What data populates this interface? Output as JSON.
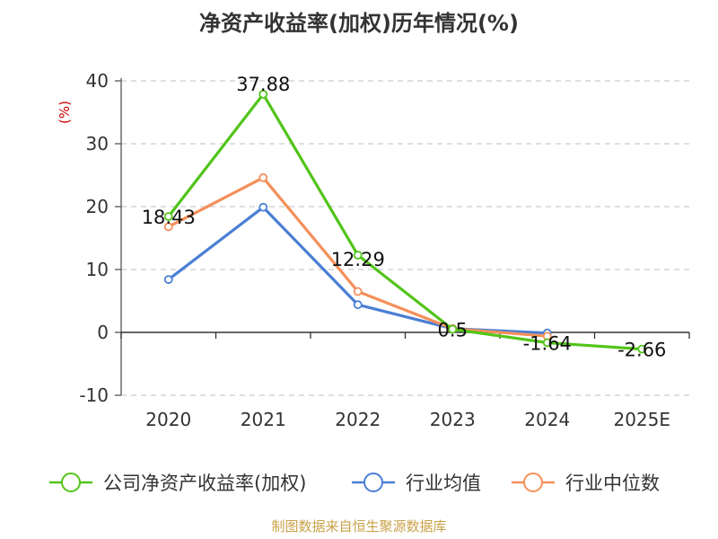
{
  "chart_data": {
    "type": "line",
    "title": "净资产收益率(加权)历年情况(%)",
    "ylabel": "(%)",
    "xlabel": "",
    "categories": [
      "2020",
      "2021",
      "2022",
      "2023",
      "2024",
      "2025E"
    ],
    "ylim": [
      -10,
      40
    ],
    "yticks": [
      -10,
      0,
      10,
      20,
      30,
      40
    ],
    "grid": true,
    "legend_position": "bottom",
    "series": [
      {
        "name": "公司净资产收益率(加权)",
        "color": "#52c41a",
        "values": [
          18.43,
          37.88,
          12.29,
          0.5,
          -1.64,
          -2.66
        ],
        "labels": [
          "18.43",
          "37.88",
          "12.29",
          "0.5",
          "-1.64",
          "-2.66"
        ]
      },
      {
        "name": "行业均值",
        "color": "#4a7fd4",
        "values": [
          8.4,
          19.9,
          4.4,
          0.6,
          -0.1,
          null
        ]
      },
      {
        "name": "行业中位数",
        "color": "#f4905a",
        "values": [
          16.8,
          24.6,
          6.5,
          0.6,
          -0.6,
          null
        ]
      }
    ],
    "source": "制图数据来自恒生聚源数据库"
  }
}
